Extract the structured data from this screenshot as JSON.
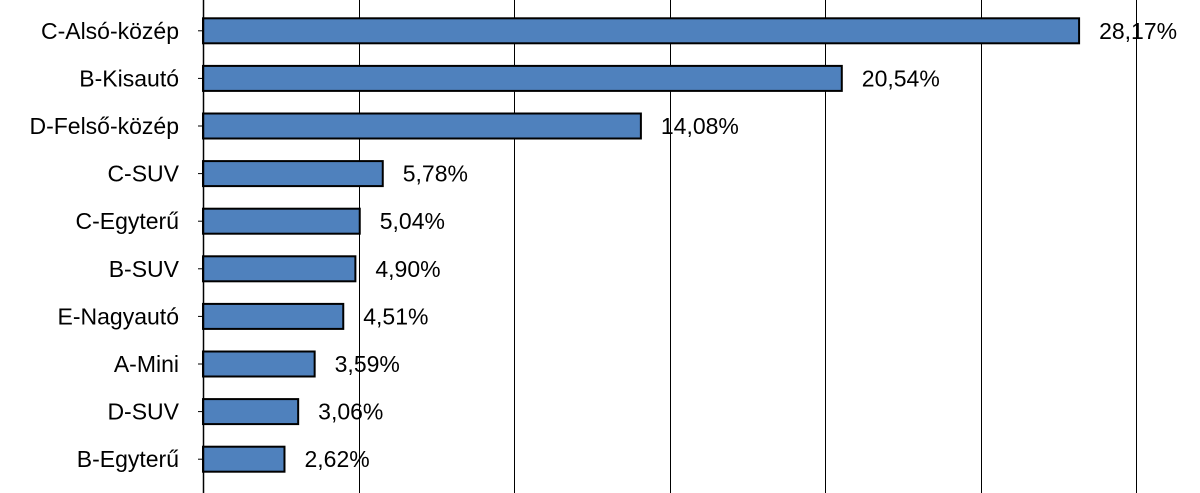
{
  "chart_data": {
    "type": "bar",
    "orientation": "horizontal",
    "title": "",
    "xlabel": "",
    "ylabel": "",
    "categories": [
      "C-Alsó-közép",
      "B-Kisautó",
      "D-Felső-közép",
      "C-SUV",
      "C-Egyterű",
      "B-SUV",
      "E-Nagyautó",
      "A-Mini",
      "D-SUV",
      "B-Egyterű"
    ],
    "values": [
      28.17,
      20.54,
      14.08,
      5.78,
      5.04,
      4.9,
      4.51,
      3.59,
      3.06,
      2.62
    ],
    "value_labels": [
      "28,17%",
      "20,54%",
      "14,08%",
      "5,78%",
      "5,04%",
      "4,90%",
      "4,51%",
      "3,59%",
      "3,06%",
      "2,62%"
    ],
    "xlim": [
      0,
      30
    ],
    "grid": true,
    "bar_color": "#4f81bd",
    "bar_edge_color": "#000000",
    "legend": "none"
  }
}
